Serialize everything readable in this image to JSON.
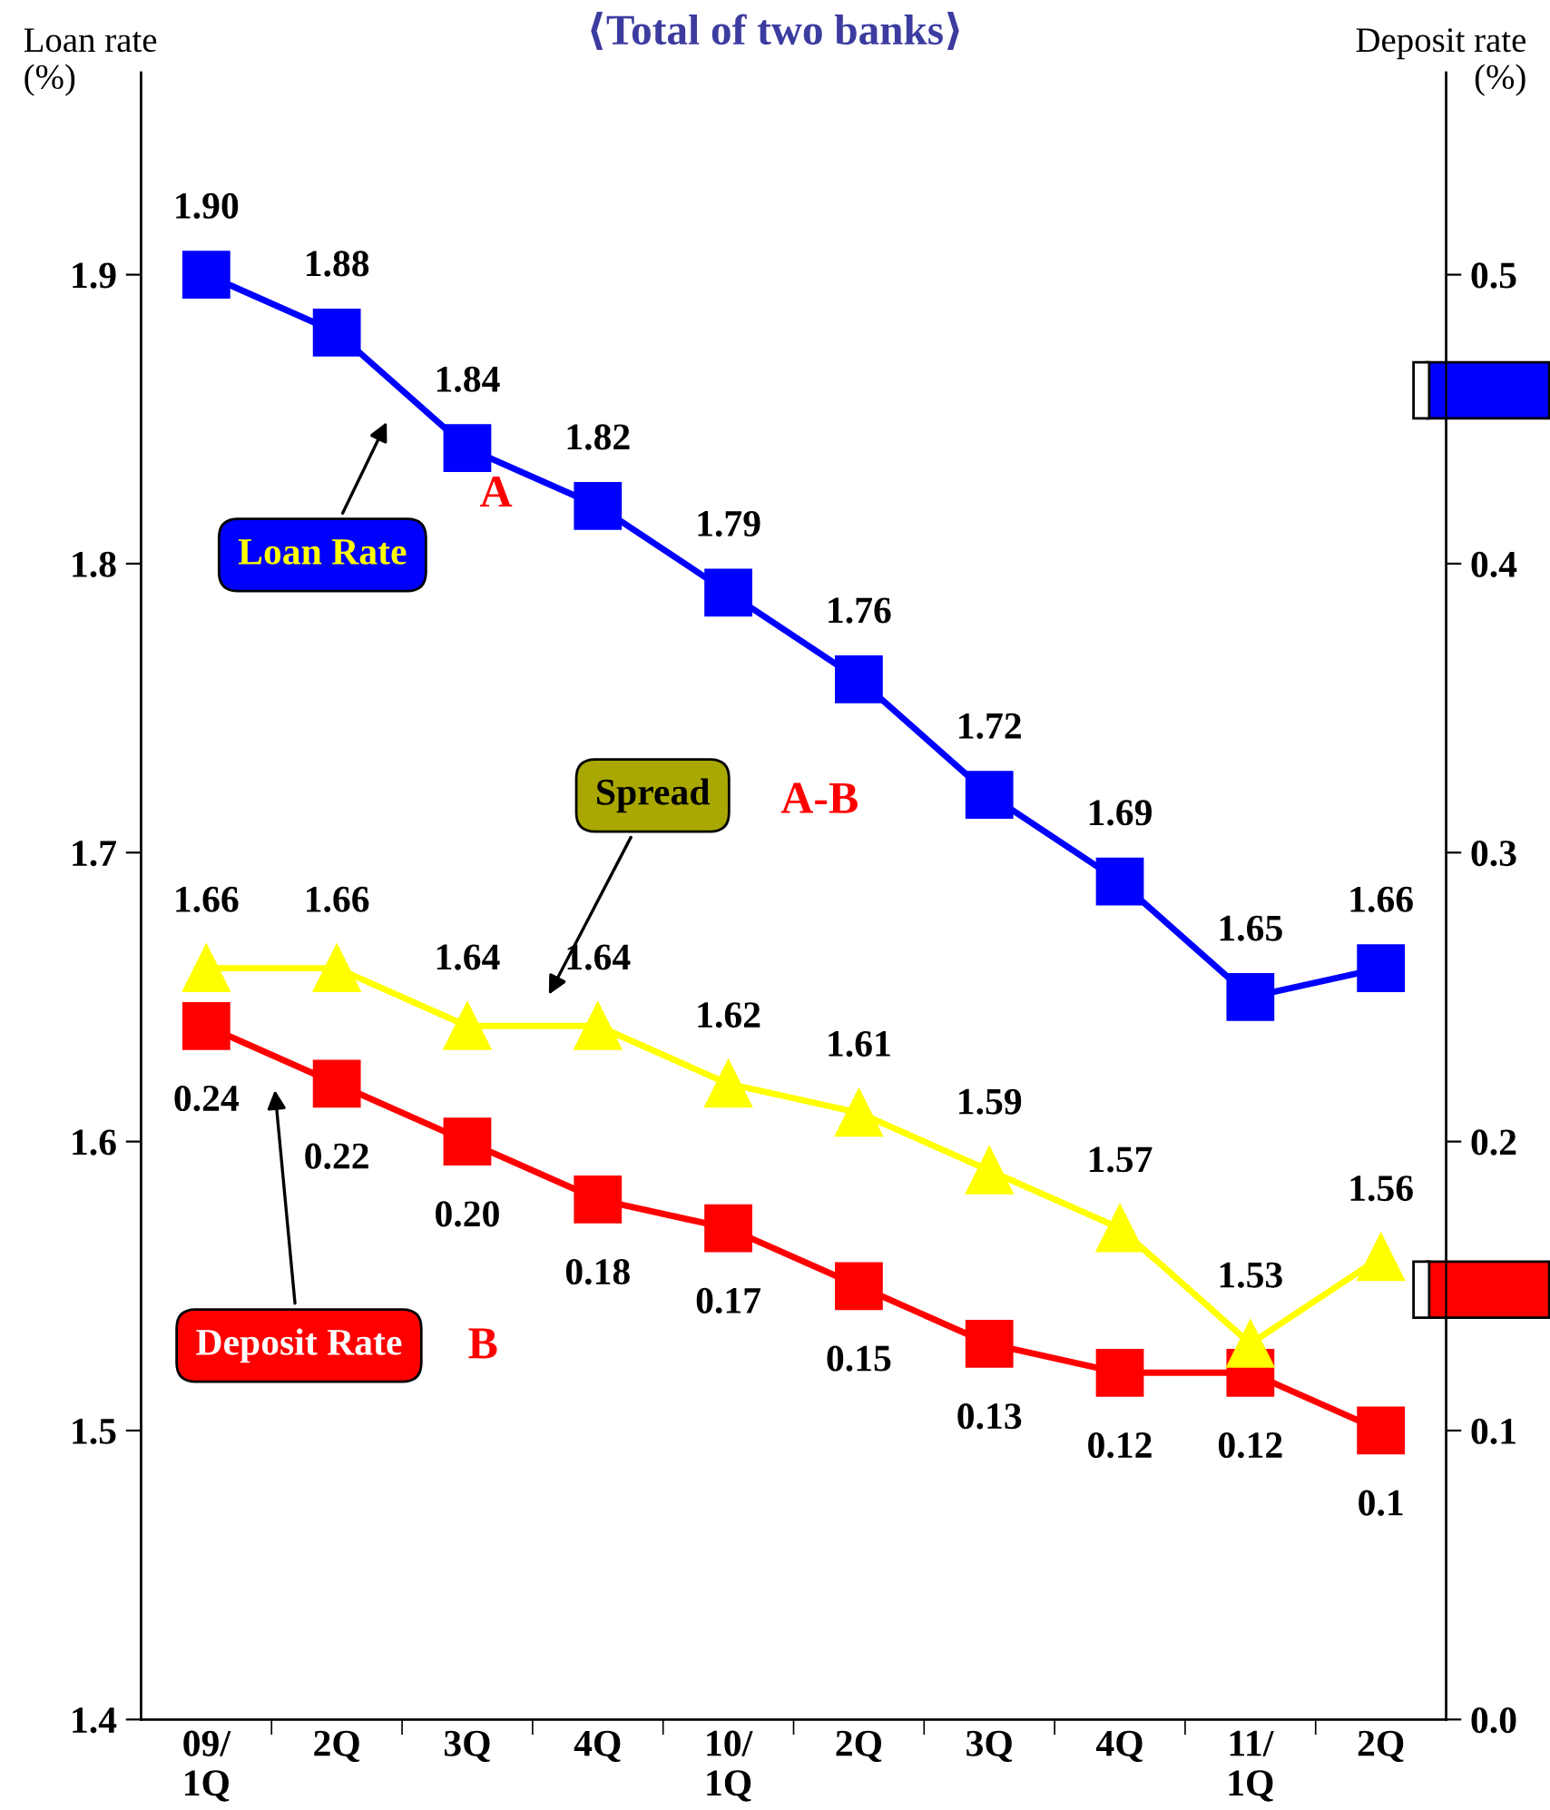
{
  "chart_data": {
    "type": "line",
    "title": "⟨Total of two banks⟩",
    "ylabel": "Loan rate\n(%)",
    "y2label": "Deposit rate\n(%)",
    "categories": [
      "09/\n1Q",
      "2Q",
      "3Q",
      "4Q",
      "10/\n1Q",
      "2Q",
      "3Q",
      "4Q",
      "11/\n1Q",
      "2Q"
    ],
    "series": [
      {
        "name": "Loan Rate",
        "color": "#0000ff",
        "marker": "square",
        "values": [
          1.9,
          1.88,
          1.84,
          1.82,
          1.79,
          1.76,
          1.72,
          1.69,
          1.65,
          1.66
        ],
        "value_labels": [
          "1.90",
          "1.88",
          "1.84",
          "1.82",
          "1.79",
          "1.76",
          "1.72",
          "1.69",
          "1.65",
          "1.66"
        ]
      },
      {
        "name": "Spread",
        "color": "#ffff00",
        "marker": "triangle",
        "values": [
          1.66,
          1.66,
          1.64,
          1.64,
          1.62,
          1.61,
          1.59,
          1.57,
          1.53,
          1.56
        ],
        "value_labels": [
          "1.66",
          "1.66",
          "1.64",
          "1.64",
          "1.62",
          "1.61",
          "1.59",
          "1.57",
          "1.53",
          "1.56"
        ]
      },
      {
        "name": "Deposit Rate",
        "color": "#ff0000",
        "marker": "square",
        "axis": "y2",
        "values": [
          0.24,
          0.22,
          0.2,
          0.18,
          0.17,
          0.15,
          0.13,
          0.12,
          0.12,
          0.1
        ],
        "value_labels": [
          "0.24",
          "0.22",
          "0.20",
          "0.18",
          "0.17",
          "0.15",
          "0.13",
          "0.12",
          "0.12",
          "0.1"
        ]
      }
    ],
    "ylim": [
      1.4,
      1.97
    ],
    "yticks": [
      1.4,
      1.5,
      1.6,
      1.7,
      1.8,
      1.9
    ],
    "y2lim": [
      0,
      0.57
    ],
    "y2ticks": [
      {
        "value": 0,
        "label": "0.0"
      },
      0.1,
      0.2,
      0.3,
      0.4,
      0.5
    ],
    "annotations": [
      "A",
      "A-B",
      "B"
    ],
    "grid": false
  }
}
